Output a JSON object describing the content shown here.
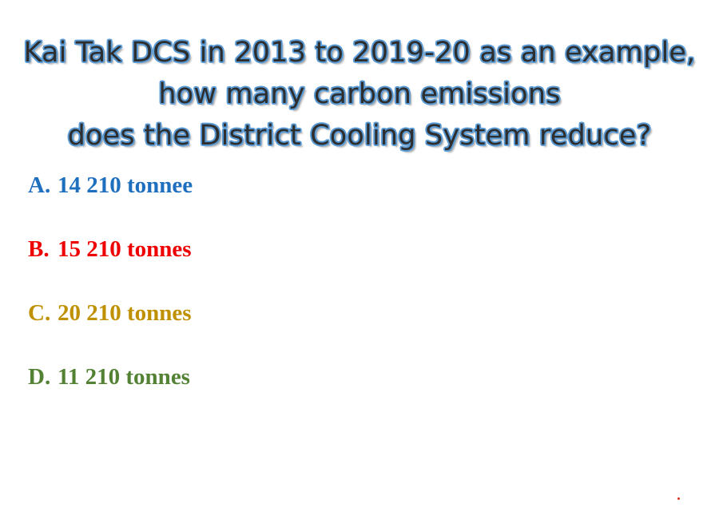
{
  "question": {
    "lines": [
      "Kai Tak DCS in 2013 to 2019-20 as an example,",
      "how many carbon emissions",
      "does the District Cooling System reduce?"
    ]
  },
  "options": [
    {
      "letter": "A.",
      "text": "14 210 tonnee",
      "color": "#1f6fbf"
    },
    {
      "letter": "B.",
      "text": "15 210 tonnes",
      "color": "#ee0000"
    },
    {
      "letter": "C.",
      "text": "20 210 tonnes",
      "color": "#bf9000"
    },
    {
      "letter": "D.",
      "text": "11 210 tonnes",
      "color": "#548235"
    }
  ],
  "colors": {
    "question_text": "#2e2e2e",
    "question_outline": "#5b9bd5",
    "background": "#ffffff"
  }
}
